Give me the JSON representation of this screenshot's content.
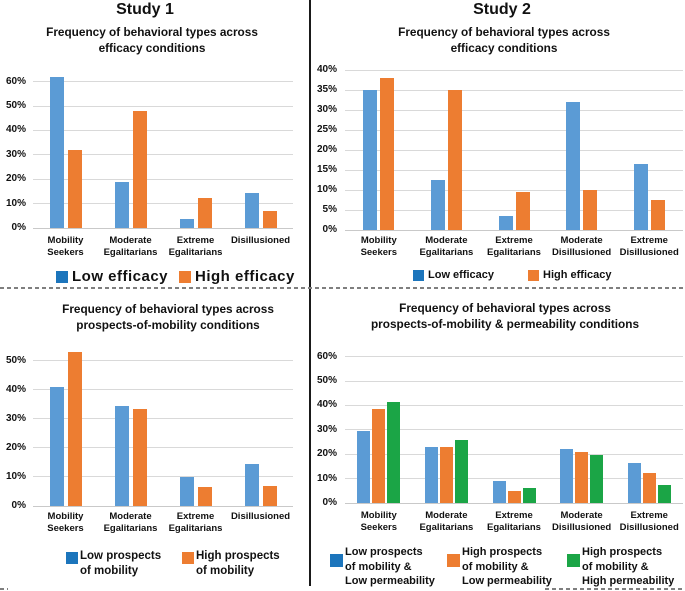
{
  "page": {
    "study1_heading": "Study 1",
    "study2_heading": "Study 2"
  },
  "colors": {
    "bar_blue": "#5B9BD5",
    "bar_orange": "#ED7D31",
    "bar_green": "#1BA546",
    "legend_blue": "#1C75BC",
    "grid": "#D9D9D9",
    "axis": "#C9C9C9",
    "divider": "#1A1A1A",
    "dash": "#7F7F7F",
    "text": "#111111"
  },
  "chart_data": [
    {
      "id": "study1-efficacy",
      "type": "bar",
      "title": "Frequency of behavioral types across\nefficacy conditions",
      "categories": [
        "Mobility Seekers",
        "Moderate Egalitarians",
        "Extreme Egalitarians",
        "Disillusioned"
      ],
      "series": [
        {
          "name": "Low efficacy",
          "color": "blue",
          "values": [
            62,
            19,
            3.5,
            14.5
          ]
        },
        {
          "name": "High efficacy",
          "color": "orange",
          "values": [
            32,
            48,
            12.5,
            7
          ]
        }
      ],
      "ylim": [
        0,
        60
      ],
      "ytick": 10,
      "ytick_format": "percent",
      "grid": true,
      "legend_position": "bottom"
    },
    {
      "id": "study2-efficacy",
      "type": "bar",
      "title": "Frequency of behavioral types across\nefficacy conditions",
      "categories": [
        "Mobility Seekers",
        "Moderate Egalitarians",
        "Extreme Egalitarians",
        "Moderate Disillusioned",
        "Extreme Disillusioned"
      ],
      "series": [
        {
          "name": "Low efficacy",
          "color": "blue",
          "values": [
            35,
            12.5,
            3.5,
            32,
            16.5
          ]
        },
        {
          "name": "High efficacy",
          "color": "orange",
          "values": [
            38,
            35,
            9.5,
            10,
            7.5
          ]
        }
      ],
      "ylim": [
        0,
        40
      ],
      "ytick": 5,
      "ytick_format": "percent",
      "grid": true,
      "legend_position": "bottom"
    },
    {
      "id": "study1-prospects-of-mobility",
      "type": "bar",
      "title": "Frequency of behavioral types across\nprospects-of-mobility conditions",
      "categories": [
        "Mobility Seekers",
        "Moderate Egalitarians",
        "Extreme Egalitarians",
        "Disillusioned"
      ],
      "series": [
        {
          "name": "Low prospects\nof mobility",
          "color": "blue",
          "values": [
            41,
            34.5,
            10,
            14.5
          ]
        },
        {
          "name": "High prospects\nof mobility",
          "color": "orange",
          "values": [
            53,
            33.5,
            6.5,
            7
          ]
        }
      ],
      "ylim": [
        0,
        50
      ],
      "ytick": 10,
      "ytick_format": "percent",
      "grid": true,
      "legend_position": "bottom"
    },
    {
      "id": "study2-prospects-permeability",
      "type": "bar",
      "title": "Frequency of behavioral types across\nprospects-of-mobility & permeability conditions",
      "categories": [
        "Mobility Seekers",
        "Moderate Egalitarians",
        "Extreme Egalitarians",
        "Moderate Disillusioned",
        "Extreme Disillusioned"
      ],
      "series": [
        {
          "name": "Low prospects\nof mobility &\nLow permeability",
          "color": "blue",
          "values": [
            29.5,
            23,
            9,
            22,
            16.5
          ]
        },
        {
          "name": "High prospects\nof mobility &\nLow permeability",
          "color": "orange",
          "values": [
            38.5,
            23,
            5,
            21,
            12.5
          ]
        },
        {
          "name": "High prospects\nof mobility &\nHigh permeability",
          "color": "green",
          "values": [
            41.5,
            26,
            6,
            19.5,
            7.5
          ]
        }
      ],
      "ylim": [
        0,
        60
      ],
      "ytick": 10,
      "ytick_format": "percent",
      "grid": true,
      "legend_position": "bottom"
    }
  ]
}
